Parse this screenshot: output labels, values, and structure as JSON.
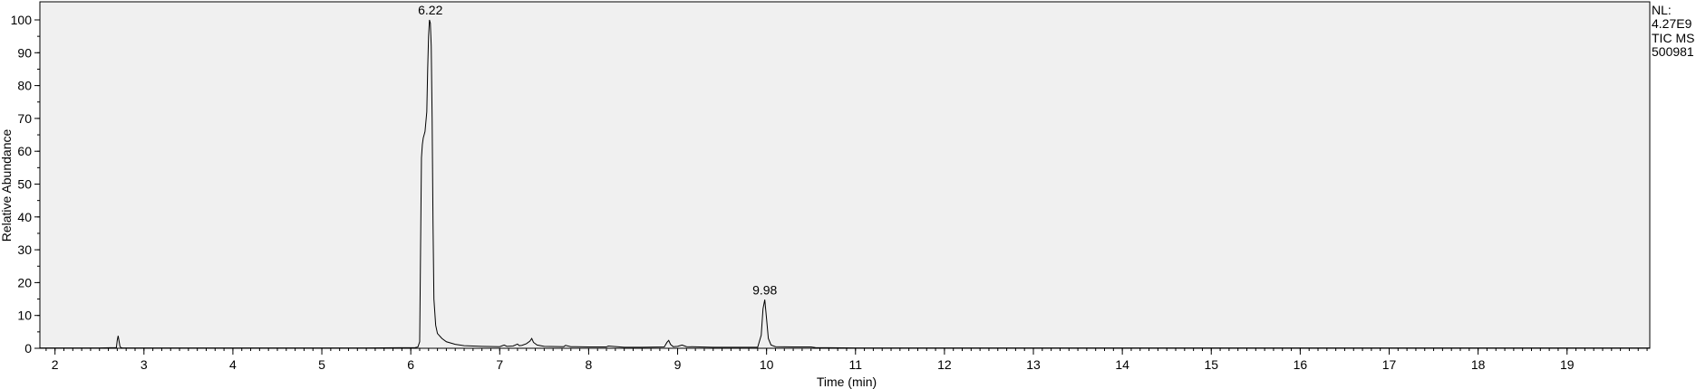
{
  "chart_data": {
    "type": "line",
    "xlabel": "Time (min)",
    "ylabel": "Relative Abundance",
    "xlim": [
      1.83,
      19.93
    ],
    "ylim": [
      0,
      100
    ],
    "x_ticks": [
      2,
      3,
      4,
      5,
      6,
      7,
      8,
      9,
      10,
      11,
      12,
      13,
      14,
      15,
      16,
      17,
      18,
      19
    ],
    "y_ticks": [
      0,
      10,
      20,
      30,
      40,
      50,
      60,
      70,
      80,
      90,
      100
    ],
    "background": "#f0f0f0",
    "line_color": "#000000",
    "info_block": [
      "NL:",
      "4.27E9",
      "TIC  MS",
      "500981"
    ],
    "peak_labels": [
      {
        "x": 6.22,
        "y": 100,
        "text": "6.22"
      },
      {
        "x": 9.98,
        "y": 14.8,
        "text": "9.98"
      }
    ],
    "series": [
      {
        "x": [
          1.83,
          2.5,
          2.69,
          2.7,
          2.71,
          2.72,
          2.73,
          2.74,
          2.76,
          3.5,
          4.5,
          5.5,
          6.05,
          6.08,
          6.1,
          6.11,
          6.12,
          6.13,
          6.14,
          6.16,
          6.18,
          6.19,
          6.2,
          6.21,
          6.22,
          6.23,
          6.24,
          6.25,
          6.26,
          6.28,
          6.3,
          6.35,
          6.4,
          6.5,
          6.6,
          6.8,
          7.0,
          7.05,
          7.08,
          7.15,
          7.2,
          7.22,
          7.25,
          7.3,
          7.34,
          7.36,
          7.38,
          7.42,
          7.5,
          7.72,
          7.74,
          7.8,
          8.0,
          8.2,
          8.22,
          8.4,
          8.6,
          8.85,
          8.88,
          8.9,
          8.92,
          8.95,
          9.0,
          9.05,
          9.1,
          9.4,
          9.6,
          9.9,
          9.94,
          9.96,
          9.98,
          10.0,
          10.02,
          10.05,
          10.1,
          10.3,
          10.5,
          10.55,
          11.0,
          12.0,
          13.0,
          14.0,
          15.0,
          16.0,
          17.0,
          18.0,
          19.0,
          19.93
        ],
        "y": [
          0.1,
          0.1,
          0.2,
          2.5,
          3.8,
          2.2,
          0.6,
          0.2,
          0.1,
          0.1,
          0.1,
          0.1,
          0.2,
          0.4,
          2,
          30,
          58,
          62,
          64,
          66,
          72,
          85,
          95,
          100,
          99,
          92,
          70,
          38,
          15,
          7,
          4.5,
          3,
          2,
          1.2,
          0.8,
          0.6,
          0.5,
          1,
          0.6,
          0.7,
          1.3,
          0.8,
          0.9,
          1.4,
          2.2,
          3,
          1.8,
          1,
          0.6,
          0.5,
          0.9,
          0.5,
          0.4,
          0.4,
          0.7,
          0.3,
          0.3,
          0.4,
          1.8,
          2.4,
          1.2,
          0.5,
          0.6,
          1,
          0.5,
          0.3,
          0.3,
          0.3,
          4,
          12,
          14.8,
          9,
          3,
          1,
          0.5,
          0.4,
          0.4,
          0.2,
          0.1,
          0.1,
          0.1,
          0.1,
          0.1,
          0.1,
          0.1,
          0.1,
          0.1,
          0.1
        ]
      }
    ]
  }
}
